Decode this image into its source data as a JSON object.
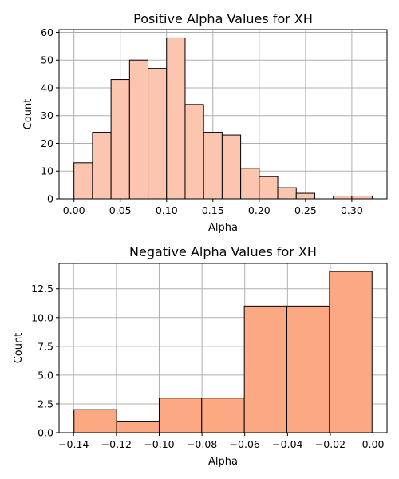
{
  "chart_data": [
    {
      "type": "bar",
      "title": "Positive Alpha Values for XH",
      "xlabel": "Alpha",
      "ylabel": "Count",
      "bar_color": "#fcc5b0",
      "bins": [
        {
          "start": 0.0,
          "end": 0.02,
          "count": 13
        },
        {
          "start": 0.02,
          "end": 0.04,
          "count": 24
        },
        {
          "start": 0.04,
          "end": 0.06,
          "count": 43
        },
        {
          "start": 0.06,
          "end": 0.08,
          "count": 50
        },
        {
          "start": 0.08,
          "end": 0.1,
          "count": 47
        },
        {
          "start": 0.1,
          "end": 0.12,
          "count": 58
        },
        {
          "start": 0.12,
          "end": 0.14,
          "count": 34
        },
        {
          "start": 0.14,
          "end": 0.16,
          "count": 24
        },
        {
          "start": 0.16,
          "end": 0.18,
          "count": 23
        },
        {
          "start": 0.18,
          "end": 0.2,
          "count": 11
        },
        {
          "start": 0.2,
          "end": 0.22,
          "count": 8
        },
        {
          "start": 0.22,
          "end": 0.24,
          "count": 4
        },
        {
          "start": 0.24,
          "end": 0.26,
          "count": 2
        },
        {
          "start": 0.28,
          "end": 0.3,
          "count": 1
        },
        {
          "start": 0.3,
          "end": 0.322,
          "count": 1
        }
      ],
      "xlim": [
        -0.0161,
        0.338
      ],
      "ylim": [
        0,
        61
      ],
      "xticks": [
        0.0,
        0.05,
        0.1,
        0.15,
        0.2,
        0.25,
        0.3
      ],
      "xtick_labels": [
        "0.00",
        "0.05",
        "0.10",
        "0.15",
        "0.20",
        "0.25",
        "0.30"
      ],
      "yticks": [
        0,
        10,
        20,
        30,
        40,
        50,
        60
      ],
      "ytick_labels": [
        "0",
        "10",
        "20",
        "30",
        "40",
        "50",
        "60"
      ],
      "grid": true
    },
    {
      "type": "bar",
      "title": "Negative Alpha Values for XH",
      "xlabel": "Alpha",
      "ylabel": "Count",
      "bar_color": "#fca882",
      "bins": [
        {
          "start": -0.1398,
          "end": -0.1199,
          "count": 2
        },
        {
          "start": -0.1199,
          "end": -0.1,
          "count": 1
        },
        {
          "start": -0.1,
          "end": -0.0801,
          "count": 3
        },
        {
          "start": -0.0801,
          "end": -0.0602,
          "count": 3
        },
        {
          "start": -0.0602,
          "end": -0.0403,
          "count": 11
        },
        {
          "start": -0.0403,
          "end": -0.0204,
          "count": 11
        },
        {
          "start": -0.0204,
          "end": -0.0005,
          "count": 14
        }
      ],
      "xlim": [
        -0.1468,
        0.0065
      ],
      "ylim": [
        0,
        14.7
      ],
      "xticks": [
        -0.14,
        -0.12,
        -0.1,
        -0.08,
        -0.06,
        -0.04,
        -0.02,
        0.0
      ],
      "xtick_labels": [
        "−0.14",
        "−0.12",
        "−0.10",
        "−0.08",
        "−0.06",
        "−0.04",
        "−0.02",
        "0.00"
      ],
      "yticks": [
        0,
        2.5,
        5,
        7.5,
        10,
        12.5
      ],
      "ytick_labels": [
        "0.0",
        "2.5",
        "5.0",
        "7.5",
        "10.0",
        "12.5"
      ],
      "grid": true
    }
  ]
}
